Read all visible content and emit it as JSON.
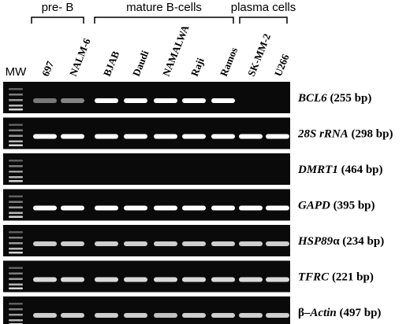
{
  "groups": [
    "pre- B",
    "mature B-cells",
    "plasma cells"
  ],
  "marker_label": "MW",
  "lanes": [
    "697",
    "NALM-6",
    "BJAB",
    "Daudi",
    "NAMALWA",
    "Raji",
    "Ramos",
    "SK-MM-2",
    "U266"
  ],
  "rows": [
    {
      "parts": [
        {
          "text": "BCL6",
          "italic": true
        },
        {
          "text": " (255 bp)",
          "italic": false
        }
      ]
    },
    {
      "parts": [
        {
          "text": "28S rRNA",
          "italic": true
        },
        {
          "text": " (298 bp)",
          "italic": false
        }
      ]
    },
    {
      "parts": [
        {
          "text": "DMRT1",
          "italic": true
        },
        {
          "text": " (464 bp)",
          "italic": false
        }
      ]
    },
    {
      "parts": [
        {
          "text": "GAPD",
          "italic": true
        },
        {
          "text": " (395 bp)",
          "italic": false
        }
      ]
    },
    {
      "parts": [
        {
          "text": "HSP89",
          "italic": true
        },
        {
          "text": "α (234 bp)",
          "italic": false
        }
      ]
    },
    {
      "parts": [
        {
          "text": "TFRC",
          "italic": true
        },
        {
          "text": " (221 bp)",
          "italic": false
        }
      ]
    },
    {
      "parts": [
        {
          "text": "β–",
          "italic": false
        },
        {
          "text": "Actin",
          "italic": true
        },
        {
          "text": " (497 bp)",
          "italic": false
        }
      ]
    }
  ]
}
